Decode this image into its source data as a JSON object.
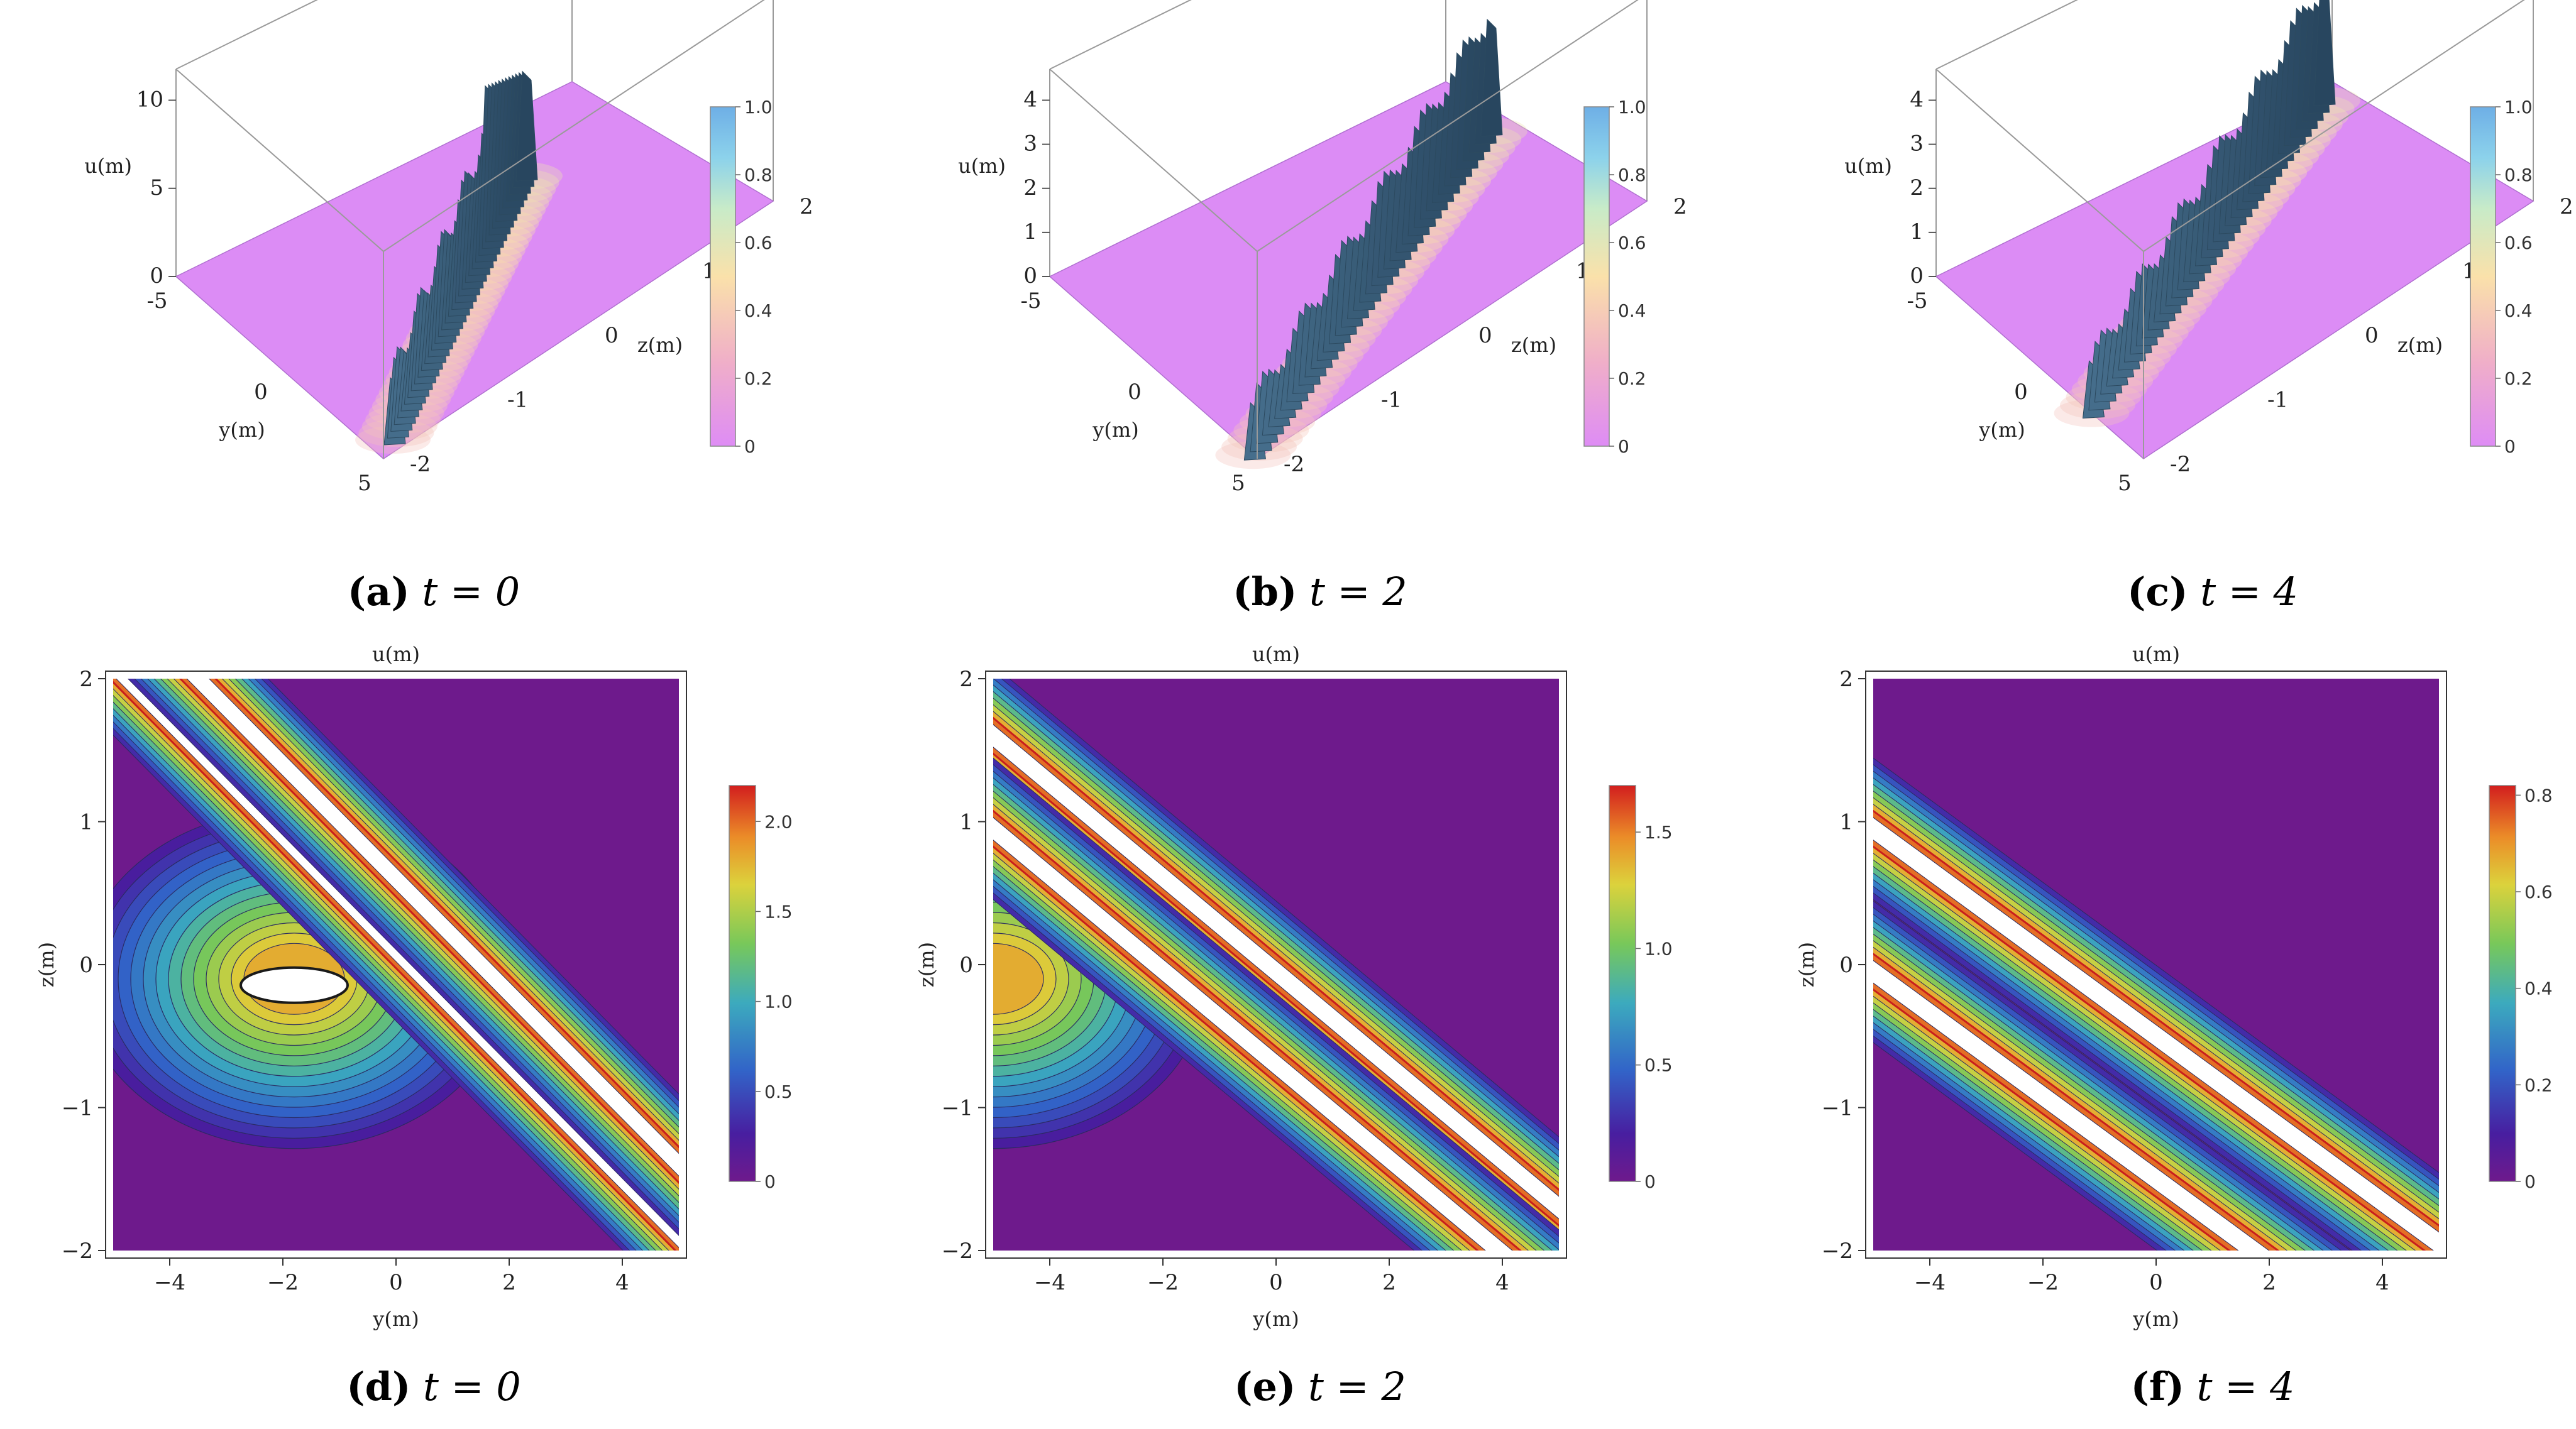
{
  "panels3d": [
    {
      "id": "a",
      "caption": {
        "label": "(a)",
        "eq": "t = 0"
      },
      "chart_data": {
        "type": "surface",
        "xlabel": "y(m)",
        "ylabel": "z(m)",
        "zlabel": "u(m)",
        "xlim": [
          -5,
          5
        ],
        "ylim": [
          -2,
          2
        ],
        "zlim": [
          0,
          10
        ],
        "x_ticks": [
          "-5",
          "0",
          "5"
        ],
        "y_ticks": [
          "-2",
          "-1",
          "0",
          "1",
          "2"
        ],
        "z_ticks": [
          "0",
          "5",
          "10"
        ],
        "colorbar": {
          "min": 0,
          "max": 1,
          "ticks": [
            "0",
            "0.2",
            "0.4",
            "0.6",
            "0.8",
            "1.0"
          ]
        },
        "peak": 10
      }
    },
    {
      "id": "b",
      "caption": {
        "label": "(b)",
        "eq": "t = 2"
      },
      "chart_data": {
        "type": "surface",
        "xlabel": "y(m)",
        "ylabel": "z(m)",
        "zlabel": "u(m)",
        "xlim": [
          -5,
          5
        ],
        "ylim": [
          -2,
          2
        ],
        "zlim": [
          0,
          4
        ],
        "x_ticks": [
          "-5",
          "0",
          "5"
        ],
        "y_ticks": [
          "-2",
          "-1",
          "0",
          "1",
          "2"
        ],
        "z_ticks": [
          "0",
          "1",
          "2",
          "3",
          "4"
        ],
        "colorbar": {
          "min": 0,
          "max": 1,
          "ticks": [
            "0",
            "0.2",
            "0.4",
            "0.6",
            "0.8",
            "1.0"
          ]
        },
        "peak": 4.5
      }
    },
    {
      "id": "c",
      "caption": {
        "label": "(c)",
        "eq": "t = 4"
      },
      "chart_data": {
        "type": "surface",
        "xlabel": "y(m)",
        "ylabel": "z(m)",
        "zlabel": "u(m)",
        "xlim": [
          -5,
          5
        ],
        "ylim": [
          -2,
          2
        ],
        "zlim": [
          0,
          4
        ],
        "x_ticks": [
          "-5",
          "0",
          "5"
        ],
        "y_ticks": [
          "-2",
          "-1",
          "0",
          "1",
          "2"
        ],
        "z_ticks": [
          "0",
          "1",
          "2",
          "3",
          "4"
        ],
        "colorbar": {
          "min": 0,
          "max": 1,
          "ticks": [
            "0",
            "0.2",
            "0.4",
            "0.6",
            "0.8",
            "1.0"
          ]
        },
        "peak": 4.2
      }
    }
  ],
  "panels2d": [
    {
      "id": "d",
      "caption": {
        "label": "(d)",
        "eq": "t = 0"
      },
      "chart_data": {
        "type": "heatmap",
        "title": "u(m)",
        "xlabel": "y(m)",
        "ylabel": "z(m)",
        "xlim": [
          -5,
          5
        ],
        "ylim": [
          -2,
          2
        ],
        "x_ticks": [
          "−4",
          "−2",
          "0",
          "2",
          "4"
        ],
        "x_tick_values": [
          -4,
          -2,
          0,
          2,
          4
        ],
        "y_ticks": [
          "2",
          "1",
          "0",
          "−1",
          "−2"
        ],
        "y_tick_values": [
          2,
          1,
          0,
          -1,
          -2
        ],
        "colorbar": {
          "min": 0,
          "max": 2.2,
          "ticks": [
            "0",
            "0.5",
            "1.0",
            "1.5",
            "2.0"
          ],
          "tick_values": [
            0,
            0.5,
            1.0,
            1.5,
            2.0
          ]
        },
        "bands": [
          {
            "z_at_y_min": 2.1,
            "slope": -0.4,
            "width": 0.45
          },
          {
            "z_at_y_min": 2.6,
            "slope": -0.4,
            "width": 0.45
          }
        ],
        "blob": {
          "y": -1.8,
          "z": -0.1
        }
      }
    },
    {
      "id": "e",
      "caption": {
        "label": "(e)",
        "eq": "t = 2"
      },
      "chart_data": {
        "type": "heatmap",
        "title": "u(m)",
        "xlabel": "y(m)",
        "ylabel": "z(m)",
        "xlim": [
          -5,
          5
        ],
        "ylim": [
          -2,
          2
        ],
        "x_ticks": [
          "−4",
          "−2",
          "0",
          "2",
          "4"
        ],
        "x_tick_values": [
          -4,
          -2,
          0,
          2,
          4
        ],
        "y_ticks": [
          "2",
          "1",
          "0",
          "−1",
          "−2"
        ],
        "y_tick_values": [
          2,
          1,
          0,
          -1,
          -2
        ],
        "colorbar": {
          "min": 0,
          "max": 1.7,
          "ticks": [
            "0",
            "0.5",
            "1.0",
            "1.5"
          ],
          "tick_values": [
            0,
            0.5,
            1.0,
            1.5
          ]
        },
        "bands": [
          {
            "z_at_y_min": 1.6,
            "slope": -0.33,
            "width": 0.45
          },
          {
            "z_at_y_min": 0.95,
            "slope": -0.33,
            "width": 0.45
          }
        ],
        "blob": {
          "y": -5,
          "z": -0.1
        }
      }
    },
    {
      "id": "f",
      "caption": {
        "label": "(f)",
        "eq": "t = 4"
      },
      "chart_data": {
        "type": "heatmap",
        "title": "u(m)",
        "xlabel": "y(m)",
        "ylabel": "z(m)",
        "xlim": [
          -5,
          5
        ],
        "ylim": [
          -2,
          2
        ],
        "x_ticks": [
          "−4",
          "−2",
          "0",
          "2",
          "4"
        ],
        "x_tick_values": [
          -4,
          -2,
          0,
          2,
          4
        ],
        "y_ticks": [
          "2",
          "1",
          "0",
          "−1",
          "−2"
        ],
        "y_tick_values": [
          2,
          1,
          0,
          -1,
          -2
        ],
        "colorbar": {
          "min": 0,
          "max": 0.82,
          "ticks": [
            "0",
            "0.2",
            "0.4",
            "0.6",
            "0.8"
          ],
          "tick_values": [
            0,
            0.2,
            0.4,
            0.6,
            0.8
          ]
        },
        "bands": [
          {
            "z_at_y_min": 0.95,
            "slope": -0.29,
            "width": 0.45
          },
          {
            "z_at_y_min": -0.05,
            "slope": -0.29,
            "width": 0.45
          }
        ],
        "blob": null
      }
    }
  ]
}
